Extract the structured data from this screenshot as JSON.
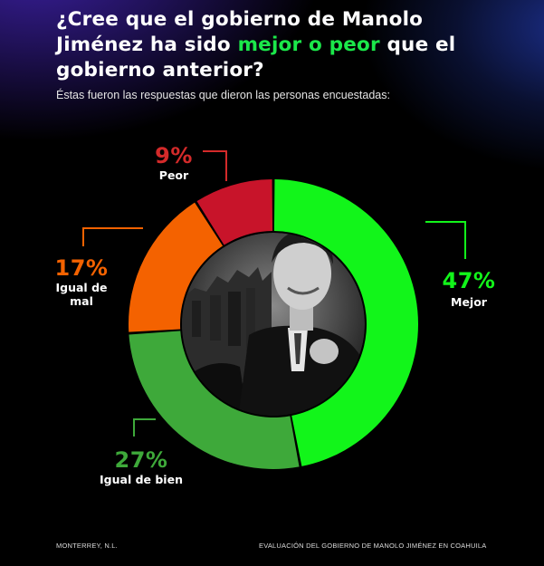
{
  "header": {
    "title_part1": "¿Cree que el gobierno de Manolo Jiménez ha sido ",
    "title_highlight": "mejor o peor",
    "title_part2": " que el gobierno anterior?",
    "subtitle": "Éstas fueron las respuestas que dieron las personas encuestadas:"
  },
  "colors": {
    "mejor": "#12f51a",
    "igual_bien": "#3ea93a",
    "igual_mal": "#f46200",
    "peor": "#c8142a",
    "highlight": "#1be84a"
  },
  "chart_data": {
    "type": "pie",
    "style": "donut",
    "title": "¿Cree que el gobierno de Manolo Jiménez ha sido mejor o peor que el gobierno anterior?",
    "slices": [
      {
        "key": "mejor",
        "label": "Mejor",
        "value": 47,
        "display": "47%",
        "color": "#12f51a"
      },
      {
        "key": "igual_bien",
        "label": "Igual de bien",
        "value": 27,
        "display": "27%",
        "color": "#3ea93a"
      },
      {
        "key": "igual_mal",
        "label": "Igual de mal",
        "value": 17,
        "display": "17%",
        "color": "#f46200"
      },
      {
        "key": "peor",
        "label": "Peor",
        "value": 9,
        "display": "9%",
        "color": "#c8142a"
      }
    ]
  },
  "footer": {
    "left": "MONTERREY, N.L.",
    "right": "EVALUACIÓN DEL GOBIERNO DE MANOLO JIMÉNEZ EN COAHUILA"
  }
}
